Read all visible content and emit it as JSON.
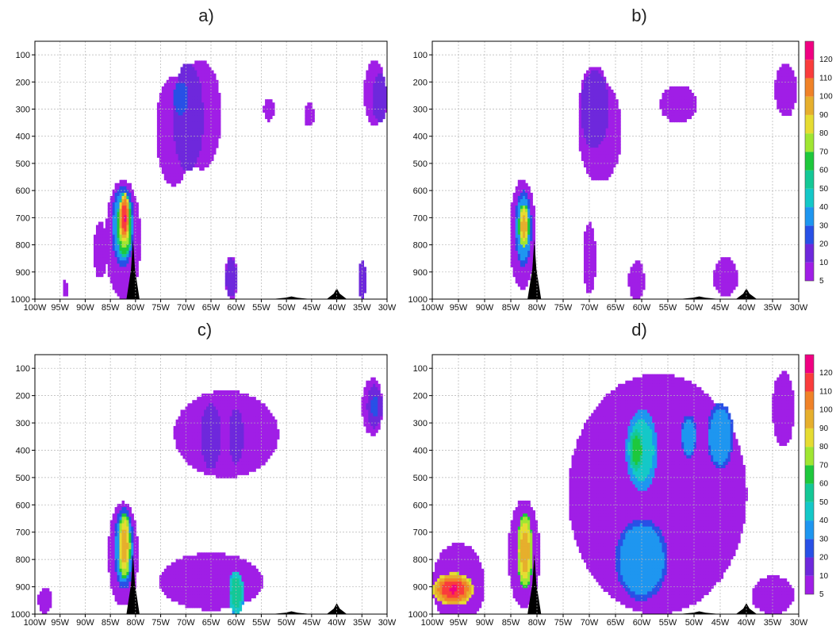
{
  "colors": {
    "levels": [
      "#a01ee6",
      "#6e28dc",
      "#2850e6",
      "#1e96f0",
      "#14c8c8",
      "#14c896",
      "#1ec83c",
      "#a0e632",
      "#e6dc32",
      "#e6af2d",
      "#f08228",
      "#fa3c3c",
      "#f00082"
    ],
    "terrain": "#000000",
    "grid": "#b4b4b4"
  },
  "chart_data": [
    {
      "type": "heatmap",
      "panel_label": "a)",
      "x_ticks": [
        "100W",
        "95W",
        "90W",
        "85W",
        "80W",
        "75W",
        "70W",
        "65W",
        "60W",
        "55W",
        "50W",
        "45W",
        "40W",
        "35W",
        "30W"
      ],
      "y_ticks": [
        "100",
        "200",
        "300",
        "400",
        "500",
        "600",
        "700",
        "800",
        "900",
        "1000"
      ],
      "xlim": [
        -100,
        -30
      ],
      "ylim": [
        1000,
        50
      ],
      "grid": true,
      "blobs": [
        {
          "x": -72.5,
          "y": 380,
          "rx": 5,
          "ry": 290,
          "v": 6
        },
        {
          "x": -69.5,
          "y": 330,
          "rx": 3,
          "ry": 200,
          "v": 18
        },
        {
          "x": -71,
          "y": 260,
          "rx": 1.5,
          "ry": 60,
          "v": 30
        },
        {
          "x": -67,
          "y": 320,
          "rx": 4,
          "ry": 200,
          "v": 10
        },
        {
          "x": -82.5,
          "y": 780,
          "rx": 3.5,
          "ry": 220,
          "v": 8
        },
        {
          "x": -82.5,
          "y": 730,
          "rx": 2.3,
          "ry": 150,
          "v": 40
        },
        {
          "x": -82.2,
          "y": 730,
          "rx": 1.5,
          "ry": 120,
          "v": 85
        },
        {
          "x": -82.2,
          "y": 700,
          "rx": 1.0,
          "ry": 90,
          "v": 122
        },
        {
          "x": -87,
          "y": 820,
          "rx": 2,
          "ry": 150,
          "v": 6
        },
        {
          "x": -32.5,
          "y": 240,
          "rx": 3,
          "ry": 180,
          "v": 6
        },
        {
          "x": -31.5,
          "y": 260,
          "rx": 1.5,
          "ry": 90,
          "v": 15
        },
        {
          "x": -53.5,
          "y": 300,
          "rx": 1.5,
          "ry": 60,
          "v": 6
        },
        {
          "x": -45.5,
          "y": 320,
          "rx": 1.5,
          "ry": 60,
          "v": 6
        },
        {
          "x": -61,
          "y": 920,
          "rx": 1.2,
          "ry": 80,
          "v": 14
        },
        {
          "x": -35,
          "y": 930,
          "rx": 0.8,
          "ry": 70,
          "v": 18
        },
        {
          "x": -94,
          "y": 960,
          "rx": 0.8,
          "ry": 40,
          "v": 6
        }
      ],
      "terrain": [
        {
          "x": -80.5,
          "h": 780,
          "w": 1.3
        },
        {
          "x": -49,
          "h": 990,
          "w": 4
        },
        {
          "x": -40,
          "h": 960,
          "w": 2
        }
      ]
    },
    {
      "type": "heatmap",
      "panel_label": "b)",
      "x_ticks": [
        "100W",
        "95W",
        "90W",
        "85W",
        "80W",
        "75W",
        "70W",
        "65W",
        "60W",
        "55W",
        "50W",
        "45W",
        "40W",
        "35W",
        "30W"
      ],
      "y_ticks": [
        "100",
        "200",
        "300",
        "400",
        "500",
        "600",
        "700",
        "800",
        "900",
        "1000"
      ],
      "xlim": [
        -100,
        -30
      ],
      "ylim": [
        1000,
        50
      ],
      "grid": true,
      "colorbar": {
        "labels": [
          "5",
          "10",
          "20",
          "30",
          "40",
          "50",
          "60",
          "70",
          "80",
          "90",
          "100",
          "110",
          "120"
        ]
      },
      "blobs": [
        {
          "x": -68,
          "y": 380,
          "rx": 6,
          "ry": 270,
          "v": 6
        },
        {
          "x": -69,
          "y": 300,
          "rx": 3,
          "ry": 160,
          "v": 14
        },
        {
          "x": -53,
          "y": 280,
          "rx": 5,
          "ry": 100,
          "v": 6
        },
        {
          "x": -32.5,
          "y": 230,
          "rx": 3,
          "ry": 140,
          "v": 6
        },
        {
          "x": -82.8,
          "y": 760,
          "rx": 2.5,
          "ry": 200,
          "v": 10
        },
        {
          "x": -82.6,
          "y": 740,
          "rx": 1.6,
          "ry": 140,
          "v": 40
        },
        {
          "x": -82.5,
          "y": 730,
          "rx": 1.0,
          "ry": 80,
          "v": 100
        },
        {
          "x": -70,
          "y": 850,
          "rx": 1.2,
          "ry": 130,
          "v": 8
        },
        {
          "x": -61,
          "y": 930,
          "rx": 1.5,
          "ry": 70,
          "v": 8
        },
        {
          "x": -44,
          "y": 920,
          "rx": 2.5,
          "ry": 80,
          "v": 7
        }
      ],
      "terrain": [
        {
          "x": -80.5,
          "h": 780,
          "w": 1.3
        },
        {
          "x": -49,
          "h": 990,
          "w": 4
        },
        {
          "x": -40,
          "h": 960,
          "w": 2
        }
      ]
    },
    {
      "type": "heatmap",
      "panel_label": "c)",
      "x_ticks": [
        "100W",
        "95W",
        "90W",
        "85W",
        "80W",
        "75W",
        "70W",
        "65W",
        "60W",
        "55W",
        "50W",
        "45W",
        "40W",
        "35W",
        "30W"
      ],
      "y_ticks": [
        "100",
        "200",
        "300",
        "400",
        "500",
        "600",
        "700",
        "800",
        "900",
        "1000"
      ],
      "xlim": [
        -100,
        -30
      ],
      "ylim": [
        1000,
        50
      ],
      "grid": true,
      "blobs": [
        {
          "x": -62,
          "y": 340,
          "rx": 15,
          "ry": 230,
          "v": 6
        },
        {
          "x": -65,
          "y": 350,
          "rx": 2,
          "ry": 120,
          "v": 16
        },
        {
          "x": -60,
          "y": 350,
          "rx": 1.5,
          "ry": 100,
          "v": 18
        },
        {
          "x": -33,
          "y": 240,
          "rx": 3,
          "ry": 150,
          "v": 6
        },
        {
          "x": -32.5,
          "y": 240,
          "rx": 1.5,
          "ry": 80,
          "v": 22
        },
        {
          "x": -82.5,
          "y": 780,
          "rx": 3,
          "ry": 190,
          "v": 8
        },
        {
          "x": -82.3,
          "y": 760,
          "rx": 2,
          "ry": 150,
          "v": 40
        },
        {
          "x": -82.2,
          "y": 750,
          "rx": 1.2,
          "ry": 120,
          "v": 100
        },
        {
          "x": -65,
          "y": 880,
          "rx": 15,
          "ry": 150,
          "v": 6
        },
        {
          "x": -60,
          "y": 920,
          "rx": 1.5,
          "ry": 80,
          "v": 60
        },
        {
          "x": -98,
          "y": 950,
          "rx": 2,
          "ry": 70,
          "v": 6
        }
      ],
      "terrain": [
        {
          "x": -80.5,
          "h": 780,
          "w": 1.3
        },
        {
          "x": -49,
          "h": 990,
          "w": 4
        },
        {
          "x": -40,
          "h": 960,
          "w": 2
        }
      ]
    },
    {
      "type": "heatmap",
      "panel_label": "d)",
      "x_ticks": [
        "100W",
        "95W",
        "90W",
        "85W",
        "80W",
        "75W",
        "70W",
        "65W",
        "60W",
        "55W",
        "50W",
        "45W",
        "40W",
        "35W",
        "30W"
      ],
      "y_ticks": [
        "100",
        "200",
        "300",
        "400",
        "500",
        "600",
        "700",
        "800",
        "900",
        "1000"
      ],
      "xlim": [
        -100,
        -30
      ],
      "ylim": [
        1000,
        50
      ],
      "grid": true,
      "colorbar": {
        "labels": [
          "5",
          "10",
          "20",
          "30",
          "40",
          "50",
          "60",
          "70",
          "80",
          "90",
          "100",
          "110",
          "120"
        ]
      },
      "blobs": [
        {
          "x": -57,
          "y": 560,
          "rx": 17,
          "ry": 440,
          "v": 10
        },
        {
          "x": -60,
          "y": 400,
          "rx": 3,
          "ry": 150,
          "v": 50
        },
        {
          "x": -61,
          "y": 400,
          "rx": 1.5,
          "ry": 80,
          "v": 70
        },
        {
          "x": -45,
          "y": 350,
          "rx": 2.5,
          "ry": 120,
          "v": 40
        },
        {
          "x": -51,
          "y": 350,
          "rx": 1.5,
          "ry": 80,
          "v": 40
        },
        {
          "x": -60,
          "y": 800,
          "rx": 5,
          "ry": 150,
          "v": 40
        },
        {
          "x": -33,
          "y": 250,
          "rx": 3,
          "ry": 200,
          "v": 6
        },
        {
          "x": -95,
          "y": 890,
          "rx": 5,
          "ry": 150,
          "v": 8
        },
        {
          "x": -96,
          "y": 910,
          "rx": 4,
          "ry": 60,
          "v": 122
        },
        {
          "x": -82.5,
          "y": 780,
          "rx": 3,
          "ry": 200,
          "v": 10
        },
        {
          "x": -82.3,
          "y": 770,
          "rx": 1.5,
          "ry": 140,
          "v": 100
        },
        {
          "x": -35,
          "y": 930,
          "rx": 4,
          "ry": 70,
          "v": 10
        }
      ],
      "terrain": [
        {
          "x": -80.5,
          "h": 780,
          "w": 1.3
        },
        {
          "x": -49,
          "h": 990,
          "w": 4
        },
        {
          "x": -40,
          "h": 960,
          "w": 2
        }
      ]
    }
  ]
}
